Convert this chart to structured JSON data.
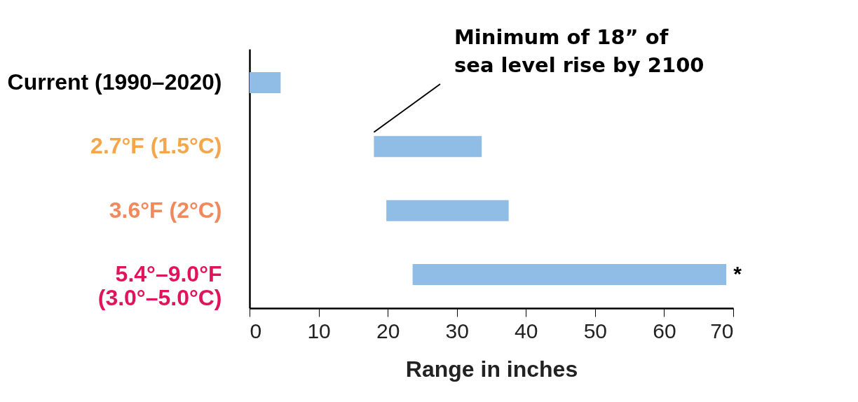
{
  "chart_data": {
    "type": "bar",
    "orientation": "horizontal",
    "xlabel": "Range in inches",
    "categories": [
      "Current (1990–2020)",
      "2.7°F (1.5°C)",
      "3.6°F (2°C)",
      "5.4°–9.0°F (3.0°–5.0°C)"
    ],
    "base": [
      0,
      18,
      19.8,
      23.6
    ],
    "values": [
      4.5,
      15.6,
      17.7,
      45.4
    ],
    "color": "#8fbde6",
    "xlim": [
      0,
      70
    ],
    "xticks": [
      0,
      10,
      20,
      30,
      40,
      50,
      60,
      70
    ],
    "grid": false,
    "annotations": [
      "Minimum of 18” of sea level rise by 2100",
      {
        "text": "*",
        "x": 69,
        "y": "5.4°–9.0°F (3.0°–5.0°C)"
      }
    ]
  }
}
